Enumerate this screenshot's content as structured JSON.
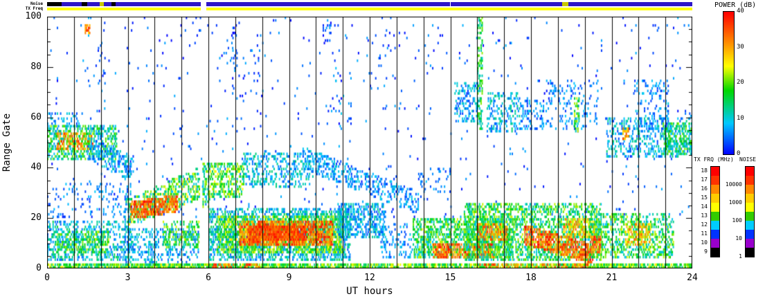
{
  "labels": {
    "xlabel": "UT hours",
    "ylabel": "Range Gate",
    "power_title": "POWER (dB)",
    "txfrq_title": "TX FRQ (MHz)",
    "noise_title": "NOISE",
    "noise_strip": "Noise",
    "txfreq_strip": "TX Freq"
  },
  "chart_data": {
    "type": "heatmap",
    "title": "",
    "xlabel": "UT hours",
    "ylabel": "Range Gate",
    "xlim": [
      0,
      24
    ],
    "ylim": [
      0,
      100
    ],
    "xticks": [
      "0",
      "3",
      "6",
      "9",
      "12",
      "15",
      "18",
      "21",
      "24"
    ],
    "yticks": [
      "0",
      "20",
      "40",
      "60",
      "80",
      "100"
    ],
    "grid": "vertical black line every 1 hour, full plot height",
    "legend_position": "right",
    "seed": 1337,
    "time_bins": 600,
    "colormap_stops": [
      [
        0.0,
        0,
        0,
        255
      ],
      [
        0.22,
        0,
        200,
        255
      ],
      [
        0.45,
        0,
        215,
        0
      ],
      [
        0.62,
        255,
        255,
        0
      ],
      [
        0.78,
        255,
        144,
        0
      ],
      [
        1.0,
        255,
        0,
        0
      ]
    ],
    "power_colorbar": {
      "title": "POWER (dB)",
      "range": [
        0,
        40
      ],
      "ticks": [
        "40",
        "30",
        "20",
        "10",
        "0"
      ]
    },
    "txfrq_colorbar": {
      "title": "TX FRQ (MHz)",
      "labels": [
        "18",
        "17",
        "16",
        "15",
        "14",
        "13",
        "12",
        "11",
        "10",
        "9"
      ],
      "colors": [
        "#ff0000",
        "#ff3300",
        "#ff8800",
        "#ffcc00",
        "#ffff00",
        "#33cc00",
        "#00ccff",
        "#0033ff",
        "#9900cc",
        "#000000"
      ]
    },
    "noise_colorbar": {
      "title": "NOISE",
      "labels": [
        "10000",
        "1000",
        "100",
        "10",
        "1"
      ],
      "label_values": [
        10000,
        1000,
        100,
        10,
        1
      ],
      "colors": [
        "#ff0000",
        "#ff3300",
        "#ff8800",
        "#ffcc00",
        "#ffff00",
        "#33cc00",
        "#00ccff",
        "#0033ff",
        "#9900cc",
        "#000000"
      ]
    },
    "top_strips": {
      "noise": {
        "label": "Noise",
        "segments": [
          {
            "t0": 0.0,
            "t1": 0.55,
            "c": "#000000"
          },
          {
            "t0": 0.55,
            "t1": 1.3,
            "c": "#2e16c8"
          },
          {
            "t0": 1.3,
            "t1": 1.5,
            "c": "#000000"
          },
          {
            "t0": 1.5,
            "t1": 1.95,
            "c": "#2e16c8"
          },
          {
            "t0": 1.95,
            "t1": 2.1,
            "c": "#c8c800"
          },
          {
            "t0": 2.1,
            "t1": 2.4,
            "c": "#2e16c8"
          },
          {
            "t0": 2.4,
            "t1": 2.55,
            "c": "#000000"
          },
          {
            "t0": 2.55,
            "t1": 5.72,
            "c": "#2e16c8"
          },
          {
            "t0": 5.92,
            "t1": 15.0,
            "c": "#2e16c8"
          },
          {
            "t0": 15.0,
            "t1": 19.15,
            "c": "#2e16c8"
          },
          {
            "t0": 19.15,
            "t1": 19.4,
            "c": "#c8c800"
          },
          {
            "t0": 19.4,
            "t1": 24.0,
            "c": "#2e16c8"
          }
        ]
      },
      "txfreq": {
        "label": "TX Freq",
        "segments": [
          {
            "t0": 0.0,
            "t1": 5.72,
            "c": "#ffff00"
          },
          {
            "t0": 5.92,
            "t1": 24.0,
            "c": "#ffff00"
          }
        ]
      }
    },
    "regions": [
      {
        "name": "bg-sparse-high",
        "t": [
          0,
          24
        ],
        "gates_t0": [
          25,
          100
        ],
        "gates_t1": [
          25,
          100
        ],
        "d": 0.012,
        "p": [
          0,
          8
        ]
      },
      {
        "name": "bg-sparse-low",
        "t": [
          0,
          24
        ],
        "gates_t0": [
          20,
          25
        ],
        "gates_t1": [
          20,
          25
        ],
        "d": 0.03,
        "p": [
          0,
          8
        ]
      },
      {
        "name": "col-2h",
        "t": [
          1.85,
          2.15
        ],
        "gates_t0": [
          55,
          95
        ],
        "gates_t1": [
          55,
          95
        ],
        "d": 0.06,
        "p": [
          0,
          8
        ]
      },
      {
        "name": "col-7h",
        "t": [
          6.6,
          7.9
        ],
        "gates_t0": [
          55,
          95
        ],
        "gates_t1": [
          55,
          95
        ],
        "d": 0.025,
        "p": [
          0,
          8
        ]
      },
      {
        "name": "col-69",
        "t": [
          6.85,
          7.05
        ],
        "gates_t0": [
          86,
          100
        ],
        "gates_t1": [
          86,
          100
        ],
        "d": 0.15,
        "p": [
          0,
          8
        ]
      },
      {
        "name": "col-104",
        "t": [
          10.25,
          10.55
        ],
        "gates_t0": [
          88,
          100
        ],
        "gates_t1": [
          88,
          100
        ],
        "d": 0.18,
        "p": [
          0,
          8
        ]
      },
      {
        "name": "col-11h",
        "t": [
          10.6,
          11.3
        ],
        "gates_t0": [
          55,
          92
        ],
        "gates_t1": [
          55,
          92
        ],
        "d": 0.05,
        "p": [
          0,
          10
        ]
      },
      {
        "name": "col-12-13",
        "t": [
          12.0,
          13.2
        ],
        "gates_t0": [
          70,
          95
        ],
        "gates_t1": [
          70,
          95
        ],
        "d": 0.03,
        "p": [
          0,
          8
        ]
      },
      {
        "name": "speck-orange-topleft",
        "t": [
          1.4,
          1.58
        ],
        "gates_t0": [
          93,
          97
        ],
        "gates_t1": [
          93,
          97
        ],
        "d": 0.6,
        "p": [
          25,
          38
        ]
      },
      {
        "name": "early-mid-cluster",
        "t": [
          0,
          2.6
        ],
        "gates_t0": [
          43,
          57
        ],
        "gates_t1": [
          43,
          57
        ],
        "d": 0.4,
        "p": [
          6,
          22
        ]
      },
      {
        "name": "early-mid-core",
        "t": [
          0.35,
          1.7
        ],
        "gates_t0": [
          47,
          54
        ],
        "gates_t1": [
          47,
          54
        ],
        "d": 0.55,
        "p": [
          18,
          38
        ]
      },
      {
        "name": "early-desc",
        "t": [
          1.5,
          3.2
        ],
        "gates_t0": [
          43,
          52
        ],
        "gates_t1": [
          35,
          44
        ],
        "d": 0.35,
        "p": [
          2,
          12
        ]
      },
      {
        "name": "early-up-56",
        "t": [
          0,
          1.2
        ],
        "gates_t0": [
          56,
          62
        ],
        "gates_t1": [
          56,
          62
        ],
        "d": 0.2,
        "p": [
          3,
          12
        ]
      },
      {
        "name": "early-low-band",
        "t": [
          0,
          3.2
        ],
        "gates_t0": [
          3,
          19
        ],
        "gates_t1": [
          3,
          19
        ],
        "d": 0.32,
        "p": [
          4,
          16
        ]
      },
      {
        "name": "early-low-core",
        "t": [
          0.3,
          2.3
        ],
        "gates_t0": [
          6,
          15
        ],
        "gates_t1": [
          6,
          15
        ],
        "d": 0.45,
        "p": [
          9,
          24
        ]
      },
      {
        "name": "early-mid-sparse",
        "t": [
          0,
          3.0
        ],
        "gates_t0": [
          20,
          34
        ],
        "gates_t1": [
          20,
          34
        ],
        "d": 0.1,
        "p": [
          2,
          9
        ]
      },
      {
        "name": "col-3h",
        "t": [
          2.88,
          3.1
        ],
        "gates_t0": [
          0,
          45
        ],
        "gates_t1": [
          0,
          45
        ],
        "d": 0.25,
        "p": [
          3,
          14
        ]
      },
      {
        "name": "asc-band",
        "t": [
          3.0,
          5.65
        ],
        "gates_t0": [
          17,
          27
        ],
        "gates_t1": [
          28,
          40
        ],
        "d": 0.5,
        "p": [
          8,
          26
        ]
      },
      {
        "name": "asc-red-core",
        "t": [
          3.1,
          4.85
        ],
        "gates_t0": [
          20,
          26
        ],
        "gates_t1": [
          23,
          29
        ],
        "d": 0.7,
        "p": [
          28,
          40
        ]
      },
      {
        "name": "asc-low-sparse",
        "t": [
          3.0,
          5.65
        ],
        "gates_t0": [
          2,
          16
        ],
        "gates_t1": [
          2,
          16
        ],
        "d": 0.28,
        "p": [
          3,
          13
        ]
      },
      {
        "name": "asc-low-green",
        "t": [
          4.3,
          5.65
        ],
        "gates_t0": [
          8,
          19
        ],
        "gates_t1": [
          8,
          19
        ],
        "d": 0.35,
        "p": [
          10,
          24
        ]
      },
      {
        "name": "gap-streak",
        "t": [
          5.78,
          6.05
        ],
        "gates_t0": [
          24,
          42
        ],
        "gates_t1": [
          24,
          42
        ],
        "d": 0.45,
        "p": [
          8,
          24
        ]
      },
      {
        "name": "day-band-outer",
        "t": [
          6.0,
          11.25
        ],
        "gates_t0": [
          3,
          24
        ],
        "gates_t1": [
          3,
          24
        ],
        "d": 0.45,
        "p": [
          4,
          16
        ]
      },
      {
        "name": "day-band-mid",
        "t": [
          6.3,
          11.0
        ],
        "gates_t0": [
          6,
          21
        ],
        "gates_t1": [
          6,
          21
        ],
        "d": 0.55,
        "p": [
          12,
          26
        ]
      },
      {
        "name": "day-core",
        "t": [
          7.15,
          10.6
        ],
        "gates_t0": [
          9,
          19
        ],
        "gates_t1": [
          9,
          19
        ],
        "d": 0.7,
        "p": [
          26,
          40
        ]
      },
      {
        "name": "day-core-hot",
        "t": [
          7.5,
          9.6
        ],
        "gates_t0": [
          11,
          17
        ],
        "gates_t1": [
          11,
          17
        ],
        "d": 0.8,
        "p": [
          32,
          40
        ]
      },
      {
        "name": "day-upper-1",
        "t": [
          6.05,
          7.3
        ],
        "gates_t0": [
          28,
          42
        ],
        "gates_t1": [
          28,
          42
        ],
        "d": 0.45,
        "p": [
          10,
          26
        ]
      },
      {
        "name": "day-upper-2",
        "t": [
          7.3,
          9.9
        ],
        "gates_t0": [
          32,
          46
        ],
        "gates_t1": [
          32,
          46
        ],
        "d": 0.3,
        "p": [
          4,
          15
        ]
      },
      {
        "name": "desc-band",
        "t": [
          9.5,
          13.8
        ],
        "gates_t0": [
          40,
          48
        ],
        "gates_t1": [
          22,
          30
        ],
        "d": 0.38,
        "p": [
          2,
          11
        ]
      },
      {
        "name": "blue-blob",
        "t": [
          10.8,
          12.6
        ],
        "gates_t0": [
          12,
          26
        ],
        "gates_t1": [
          12,
          26
        ],
        "d": 0.5,
        "p": [
          3,
          13
        ]
      },
      {
        "name": "low-12-13",
        "t": [
          12.4,
          13.6
        ],
        "gates_t0": [
          4,
          18
        ],
        "gates_t1": [
          4,
          18
        ],
        "d": 0.25,
        "p": [
          3,
          11
        ]
      },
      {
        "name": "pm-band-1",
        "t": [
          13.6,
          17.3
        ],
        "gates_t0": [
          4,
          20
        ],
        "gates_t1": [
          4,
          20
        ],
        "d": 0.5,
        "p": [
          8,
          24
        ]
      },
      {
        "name": "pm-red-1",
        "t": [
          14.35,
          16.6
        ],
        "gates_t0": [
          4,
          10
        ],
        "gates_t1": [
          4,
          10
        ],
        "d": 0.65,
        "p": [
          27,
          40
        ]
      },
      {
        "name": "pm-upper-sparse",
        "t": [
          13.8,
          15.0
        ],
        "gates_t0": [
          28,
          40
        ],
        "gates_t1": [
          28,
          40
        ],
        "d": 0.12,
        "p": [
          2,
          9
        ]
      },
      {
        "name": "pm-band-2",
        "t": [
          15.5,
          20.6
        ],
        "gates_t0": [
          3,
          26
        ],
        "gates_t1": [
          3,
          26
        ],
        "d": 0.45,
        "p": [
          8,
          24
        ]
      },
      {
        "name": "pm-red-2",
        "t": [
          16.0,
          17.1
        ],
        "gates_t0": [
          11,
          18
        ],
        "gates_t1": [
          11,
          18
        ],
        "d": 0.5,
        "p": [
          25,
          38
        ]
      },
      {
        "name": "pm-red-slant",
        "t": [
          17.75,
          20.3
        ],
        "gates_t0": [
          10,
          17
        ],
        "gates_t1": [
          2,
          9
        ],
        "d": 0.65,
        "p": [
          28,
          40
        ]
      },
      {
        "name": "pm-orange",
        "t": [
          19.2,
          20.35
        ],
        "gates_t0": [
          12,
          20
        ],
        "gates_t1": [
          12,
          20
        ],
        "d": 0.45,
        "p": [
          22,
          36
        ]
      },
      {
        "name": "up-15-16",
        "t": [
          15.15,
          16.1
        ],
        "gates_t0": [
          58,
          74
        ],
        "gates_t1": [
          58,
          74
        ],
        "d": 0.33,
        "p": [
          2,
          12
        ]
      },
      {
        "name": "green-streak-16",
        "t": [
          16.0,
          16.2
        ],
        "gates_t0": [
          55,
          100
        ],
        "gates_t1": [
          55,
          100
        ],
        "d": 0.4,
        "p": [
          10,
          22
        ]
      },
      {
        "name": "up-16-17",
        "t": [
          16.35,
          17.6
        ],
        "gates_t0": [
          54,
          70
        ],
        "gates_t1": [
          54,
          70
        ],
        "d": 0.33,
        "p": [
          3,
          14
        ]
      },
      {
        "name": "up-17-18",
        "t": [
          17.6,
          18.45
        ],
        "gates_t0": [
          55,
          67
        ],
        "gates_t1": [
          55,
          67
        ],
        "d": 0.28,
        "p": [
          2,
          10
        ]
      },
      {
        "name": "up-18-20",
        "t": [
          18.5,
          20.5
        ],
        "gates_t0": [
          55,
          75
        ],
        "gates_t1": [
          55,
          75
        ],
        "d": 0.12,
        "p": [
          2,
          9
        ]
      },
      {
        "name": "green-streak-197",
        "t": [
          19.6,
          19.78
        ],
        "gates_t0": [
          54,
          68
        ],
        "gates_t1": [
          54,
          68
        ],
        "d": 0.5,
        "p": [
          10,
          24
        ]
      },
      {
        "name": "night-band",
        "t": [
          20.15,
          23.3
        ],
        "gates_t0": [
          4,
          22
        ],
        "gates_t1": [
          4,
          22
        ],
        "d": 0.42,
        "p": [
          8,
          24
        ]
      },
      {
        "name": "night-red",
        "t": [
          20.2,
          20.6
        ],
        "gates_t0": [
          6,
          13
        ],
        "gates_t1": [
          6,
          13
        ],
        "d": 0.65,
        "p": [
          27,
          40
        ]
      },
      {
        "name": "night-orange",
        "t": [
          21.5,
          22.45
        ],
        "gates_t0": [
          9,
          18
        ],
        "gates_t1": [
          9,
          18
        ],
        "d": 0.45,
        "p": [
          20,
          34
        ]
      },
      {
        "name": "night-mid",
        "t": [
          20.8,
          24.0
        ],
        "gates_t0": [
          44,
          60
        ],
        "gates_t1": [
          44,
          60
        ],
        "d": 0.3,
        "p": [
          3,
          14
        ]
      },
      {
        "name": "night-mid-green",
        "t": [
          22.9,
          24.0
        ],
        "gates_t0": [
          45,
          58
        ],
        "gates_t1": [
          45,
          58
        ],
        "d": 0.45,
        "p": [
          8,
          22
        ]
      },
      {
        "name": "night-red-speck",
        "t": [
          21.4,
          21.62
        ],
        "gates_t0": [
          51,
          56
        ],
        "gates_t1": [
          51,
          56
        ],
        "d": 0.55,
        "p": [
          24,
          38
        ]
      },
      {
        "name": "up-21-23",
        "t": [
          21.8,
          23.1
        ],
        "gates_t0": [
          55,
          75
        ],
        "gates_t1": [
          55,
          75
        ],
        "d": 0.18,
        "p": [
          2,
          10
        ]
      },
      {
        "name": "bottom-line",
        "t": [
          0,
          24
        ],
        "gates_t0": [
          0,
          2
        ],
        "gates_t1": [
          0,
          2
        ],
        "d": 0.8,
        "p": [
          12,
          26
        ]
      },
      {
        "name": "bottom-red-1",
        "t": [
          6.1,
          7.9
        ],
        "gates_t0": [
          0,
          2
        ],
        "gates_t1": [
          0,
          2
        ],
        "d": 0.45,
        "p": [
          28,
          40
        ]
      },
      {
        "name": "bottom-red-2",
        "t": [
          16.0,
          20.2
        ],
        "gates_t0": [
          0,
          2
        ],
        "gates_t1": [
          0,
          2
        ],
        "d": 0.35,
        "p": [
          26,
          38
        ]
      }
    ]
  }
}
